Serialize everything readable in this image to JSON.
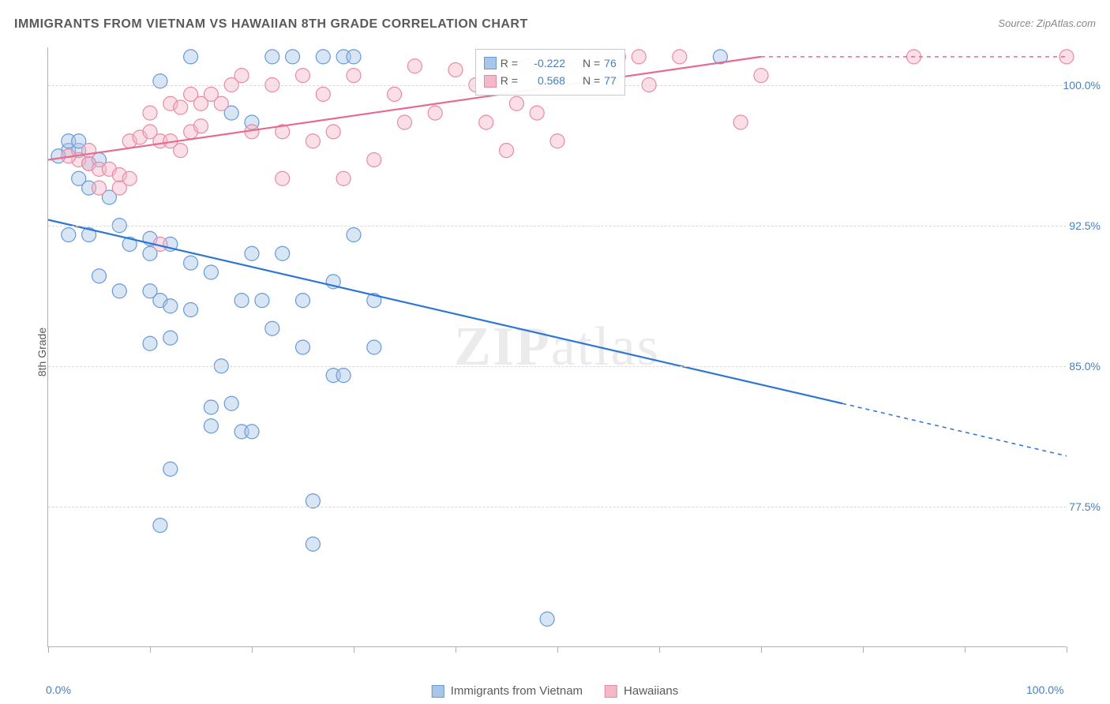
{
  "title": "IMMIGRANTS FROM VIETNAM VS HAWAIIAN 8TH GRADE CORRELATION CHART",
  "source_label": "Source:",
  "source_value": "ZipAtlas.com",
  "y_axis_label": "8th Grade",
  "watermark": {
    "part1": "ZIP",
    "part2": "atlas"
  },
  "chart": {
    "type": "scatter",
    "xlim": [
      0,
      100
    ],
    "ylim": [
      70,
      102
    ],
    "x_ticks": [
      0,
      10,
      20,
      30,
      40,
      50,
      60,
      70,
      80,
      90,
      100
    ],
    "x_tick_labels": {
      "0": "0.0%",
      "100": "100.0%"
    },
    "y_ticks": [
      77.5,
      85.0,
      92.5,
      100.0
    ],
    "y_tick_labels": [
      "77.5%",
      "85.0%",
      "92.5%",
      "100.0%"
    ],
    "background_color": "#ffffff",
    "grid_color": "#d8d8d8",
    "axis_color": "#b0b0b0",
    "marker_radius": 9,
    "marker_opacity": 0.45,
    "line_width": 2.2,
    "series": [
      {
        "name": "Immigrants from Vietnam",
        "fill_color": "#a9c6e8",
        "stroke_color": "#6699d8",
        "line_color": "#2e75d6",
        "R": "-0.222",
        "N": "76",
        "regression": {
          "x1": 0,
          "y1": 92.8,
          "x2": 78,
          "y2": 83.0,
          "ext_x2": 100,
          "ext_y2": 80.2
        },
        "points": [
          [
            14,
            101.5
          ],
          [
            22,
            101.5
          ],
          [
            24,
            101.5
          ],
          [
            27,
            101.5
          ],
          [
            29,
            101.5
          ],
          [
            30,
            101.5
          ],
          [
            66,
            101.5
          ],
          [
            2,
            96.5
          ],
          [
            3,
            96.5
          ],
          [
            2,
            97
          ],
          [
            3,
            97
          ],
          [
            1,
            96.2
          ],
          [
            4,
            95.8
          ],
          [
            5,
            96.0
          ],
          [
            11,
            100.2
          ],
          [
            18,
            98.5
          ],
          [
            20,
            98.0
          ],
          [
            3,
            95.0
          ],
          [
            4,
            94.5
          ],
          [
            6,
            94.0
          ],
          [
            2,
            92.0
          ],
          [
            4,
            92.0
          ],
          [
            7,
            92.5
          ],
          [
            8,
            91.5
          ],
          [
            10,
            91.8
          ],
          [
            10,
            91.0
          ],
          [
            12,
            91.5
          ],
          [
            14,
            90.5
          ],
          [
            16,
            90.0
          ],
          [
            20,
            91.0
          ],
          [
            5,
            89.8
          ],
          [
            7,
            89.0
          ],
          [
            10,
            89.0
          ],
          [
            11,
            88.5
          ],
          [
            12,
            88.2
          ],
          [
            14,
            88.0
          ],
          [
            19,
            88.5
          ],
          [
            21,
            88.5
          ],
          [
            23,
            91.0
          ],
          [
            25,
            88.5
          ],
          [
            28,
            89.5
          ],
          [
            32,
            88.5
          ],
          [
            30,
            92.0
          ],
          [
            10,
            86.2
          ],
          [
            12,
            86.5
          ],
          [
            17,
            85.0
          ],
          [
            22,
            87.0
          ],
          [
            25,
            86.0
          ],
          [
            28,
            84.5
          ],
          [
            29,
            84.5
          ],
          [
            32,
            86.0
          ],
          [
            16,
            82.8
          ],
          [
            18,
            83.0
          ],
          [
            19,
            81.5
          ],
          [
            20,
            81.5
          ],
          [
            16,
            81.8
          ],
          [
            12,
            79.5
          ],
          [
            11,
            76.5
          ],
          [
            26,
            77.8
          ],
          [
            26,
            75.5
          ],
          [
            49,
            71.5
          ]
        ]
      },
      {
        "name": "Hawaiians",
        "fill_color": "#f3b9c8",
        "stroke_color": "#e88aa5",
        "line_color": "#e76b8f",
        "R": "0.568",
        "N": "77",
        "regression": {
          "x1": 0,
          "y1": 96.0,
          "x2": 70,
          "y2": 101.5,
          "ext_x2": 100,
          "ext_y2": 101.5
        },
        "points": [
          [
            3,
            96.0
          ],
          [
            4,
            95.8
          ],
          [
            5,
            95.5
          ],
          [
            6,
            95.5
          ],
          [
            7,
            95.2
          ],
          [
            2,
            96.2
          ],
          [
            4,
            96.5
          ],
          [
            5,
            94.5
          ],
          [
            7,
            94.5
          ],
          [
            8,
            95.0
          ],
          [
            8,
            97.0
          ],
          [
            9,
            97.2
          ],
          [
            10,
            97.5
          ],
          [
            11,
            97.0
          ],
          [
            12,
            97.0
          ],
          [
            13,
            96.5
          ],
          [
            14,
            97.5
          ],
          [
            15,
            97.8
          ],
          [
            10,
            98.5
          ],
          [
            12,
            99.0
          ],
          [
            13,
            98.8
          ],
          [
            14,
            99.5
          ],
          [
            15,
            99.0
          ],
          [
            16,
            99.5
          ],
          [
            17,
            99.0
          ],
          [
            18,
            100.0
          ],
          [
            19,
            100.5
          ],
          [
            20,
            97.5
          ],
          [
            22,
            100.0
          ],
          [
            23,
            97.5
          ],
          [
            25,
            100.5
          ],
          [
            26,
            97.0
          ],
          [
            27,
            99.5
          ],
          [
            28,
            97.5
          ],
          [
            30,
            100.5
          ],
          [
            29,
            95.0
          ],
          [
            32,
            96.0
          ],
          [
            34,
            99.5
          ],
          [
            35,
            98.0
          ],
          [
            36,
            101.0
          ],
          [
            38,
            98.5
          ],
          [
            40,
            100.8
          ],
          [
            42,
            100.0
          ],
          [
            43,
            98.0
          ],
          [
            44,
            100.5
          ],
          [
            45,
            96.5
          ],
          [
            46,
            99.0
          ],
          [
            47,
            101.0
          ],
          [
            48,
            98.5
          ],
          [
            50,
            100.0
          ],
          [
            52,
            101.0
          ],
          [
            50,
            97.0
          ],
          [
            54,
            101.5
          ],
          [
            56,
            101.5
          ],
          [
            58,
            101.5
          ],
          [
            59,
            100.0
          ],
          [
            62,
            101.5
          ],
          [
            68,
            98.0
          ],
          [
            70,
            100.5
          ],
          [
            85,
            101.5
          ],
          [
            100,
            101.5
          ],
          [
            11,
            91.5
          ],
          [
            23,
            95.0
          ]
        ]
      }
    ]
  },
  "stats_box": {
    "rows": [
      {
        "series_idx": 0,
        "R_label": "R =",
        "R_val": "-0.222",
        "N_label": "N =",
        "N_val": "76"
      },
      {
        "series_idx": 1,
        "R_label": "R =",
        "R_val": " 0.568",
        "N_label": "N =",
        "N_val": "77"
      }
    ]
  },
  "bottom_legend": [
    {
      "label": "Immigrants from Vietnam",
      "series_idx": 0
    },
    {
      "label": "Hawaiians",
      "series_idx": 1
    }
  ]
}
